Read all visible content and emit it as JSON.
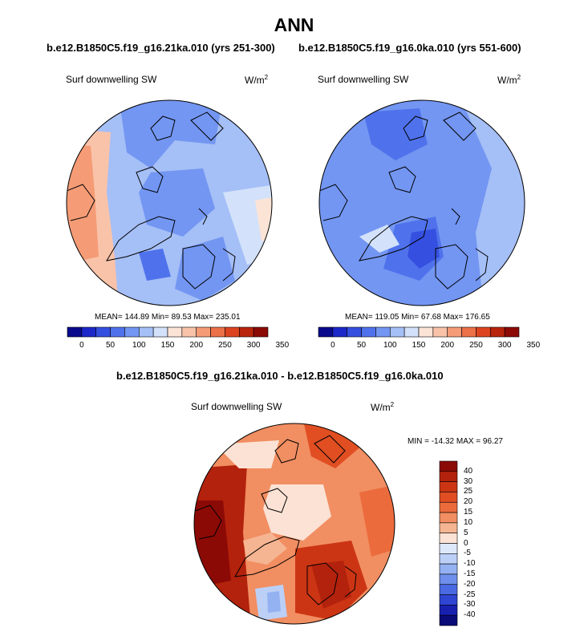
{
  "title": "ANN",
  "panels": [
    {
      "case_label": "b.e12.B1850C5.f19_g16.21ka.010 (yrs 251-300)",
      "variable": "Surf downwelling SW",
      "units_base": "W/m",
      "units_exp": "2",
      "stats": {
        "mean": "144.89",
        "min": "89.53",
        "max": "235.01"
      },
      "stats_text": "MEAN= 144.89  Min=  89.53  Max= 235.01",
      "colorbar_ticks": [
        "0",
        "50",
        "100",
        "150",
        "200",
        "250",
        "300",
        "350"
      ]
    },
    {
      "case_label": "b.e12.B1850C5.f19_g16.0ka.010 (yrs 551-600)",
      "variable": "Surf downwelling SW",
      "units_base": "W/m",
      "units_exp": "2",
      "stats": {
        "mean": "119.05",
        "min": "67.68",
        "max": "176.65"
      },
      "stats_text": "MEAN= 119.05  Min=  67.68  Max= 176.65",
      "colorbar_ticks": [
        "0",
        "50",
        "100",
        "150",
        "200",
        "250",
        "300",
        "350"
      ]
    }
  ],
  "diff_panel": {
    "case_label": "b.e12.B1850C5.f19_g16.21ka.010 - b.e12.B1850C5.f19_g16.0ka.010",
    "variable": "Surf downwelling SW",
    "units_base": "W/m",
    "units_exp": "2",
    "stats": {
      "min": "-14.32",
      "max": "96.27"
    },
    "stats_text": "MIN = -14.32 MAX =  96.27",
    "colorbar_ticks": [
      "40",
      "30",
      "25",
      "20",
      "15",
      "10",
      "5",
      "0",
      "-5",
      "-10",
      "-15",
      "-20",
      "-25",
      "-30",
      "-40"
    ]
  },
  "colors": {
    "abs_scale": [
      "#0a0a8c",
      "#1c28c8",
      "#3550e0",
      "#4f72ec",
      "#7396f2",
      "#a5bff7",
      "#d3e2fa",
      "#fbe3d6",
      "#f9c3a9",
      "#f59c76",
      "#ec7048",
      "#dc4420",
      "#b8240c",
      "#8c0a06"
    ],
    "diff_scale": [
      "#8c0a06",
      "#b3220c",
      "#cc3514",
      "#e04e22",
      "#ec6b3c",
      "#f18e62",
      "#f6b592",
      "#fbe2d4",
      "#dde8fa",
      "#bcd0f7",
      "#94b2f2",
      "#6e8fec",
      "#4a6ae3",
      "#2e46d2",
      "#1820b0",
      "#0a0a78"
    ],
    "coast": "#000000"
  }
}
